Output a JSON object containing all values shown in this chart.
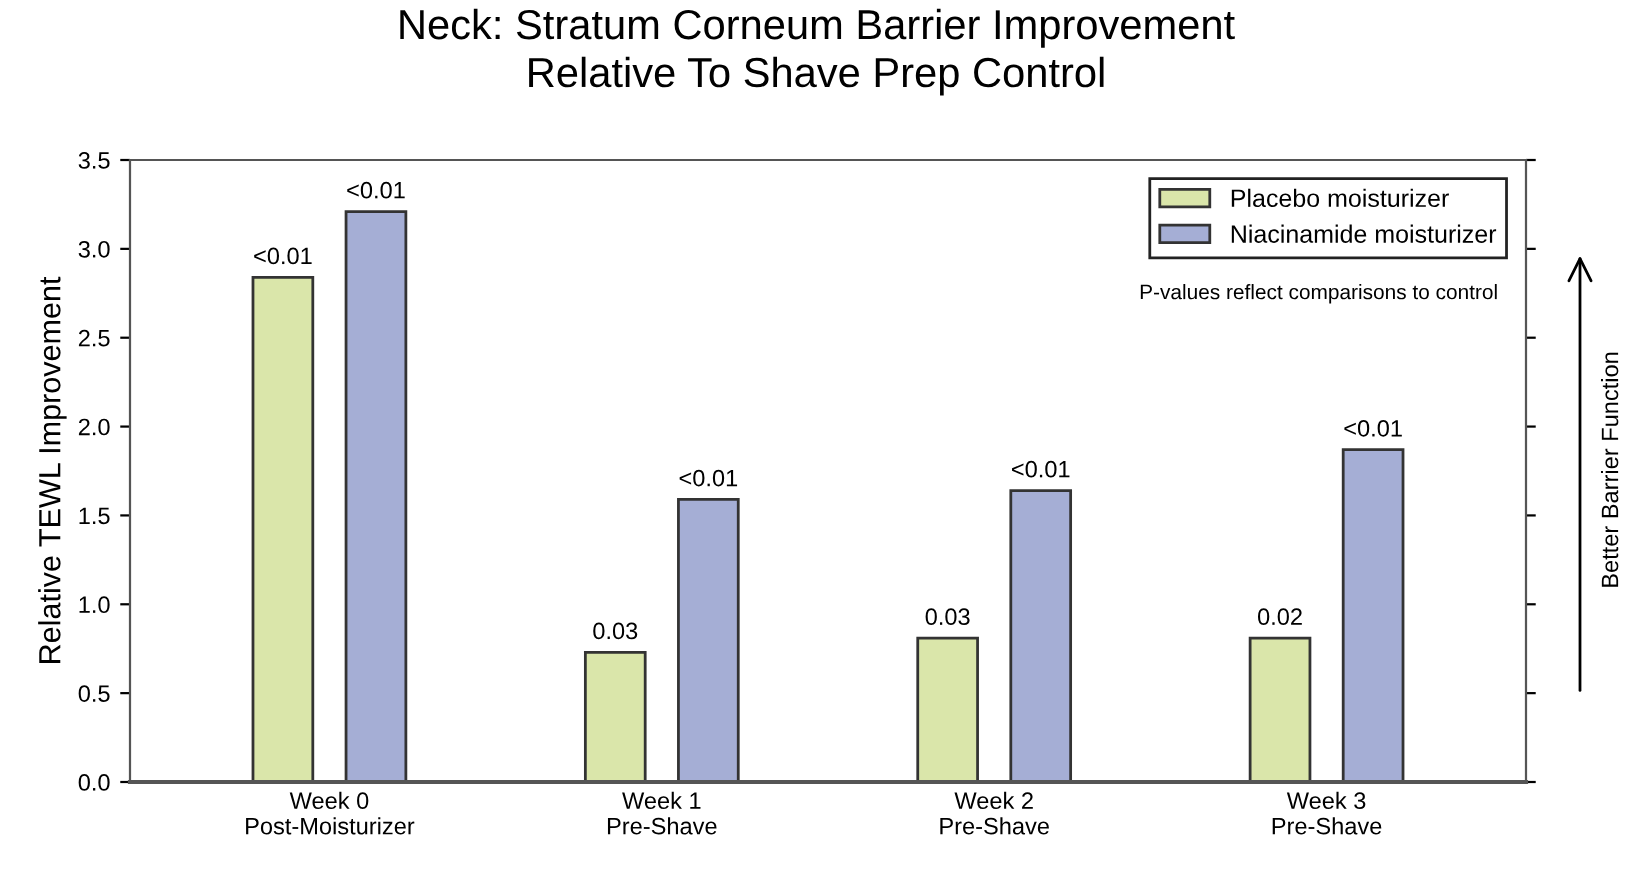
{
  "chart_data": {
    "type": "bar",
    "title": "Neck: Stratum Corneum Barrier Improvement\nRelative To Shave Prep Control",
    "ylabel": "Relative TEWL Improvement",
    "categories": [
      "Week 0\nPost-Moisturizer",
      "Week 1\nPre-Shave",
      "Week 2\nPre-Shave",
      "Week 3\nPre-Shave"
    ],
    "series": [
      {
        "name": "Placebo moisturizer",
        "color": "#dae6aa",
        "values": [
          2.84,
          0.73,
          0.81,
          0.81
        ]
      },
      {
        "name": "Niacinamide moisturizer",
        "color": "#a5aed5",
        "values": [
          3.21,
          1.59,
          1.64,
          1.87
        ]
      }
    ],
    "ylim": [
      0,
      3.5
    ],
    "yticks": [
      {
        "value": 0,
        "label": "0.0"
      },
      0.5,
      {
        "value": 1,
        "label": "1.0"
      },
      1.5,
      {
        "value": 2,
        "label": "2.0"
      },
      2.5,
      {
        "value": 3,
        "label": "3.0"
      },
      3.5
    ],
    "grid": false,
    "legend": "top right",
    "annotations": [
      "P-values reflect comparisons to control",
      "Better Barrier Function",
      "<0.01",
      "<0.01",
      "0.03",
      "<0.01",
      "0.03",
      "<0.01",
      "0.02",
      "<0.01"
    ]
  }
}
